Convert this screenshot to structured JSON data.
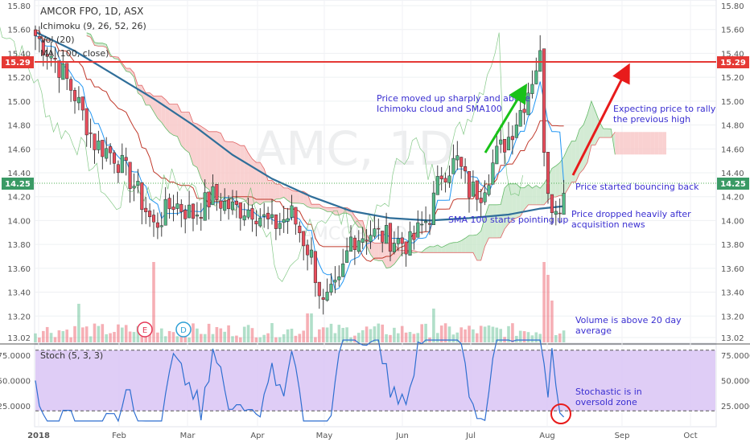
{
  "header": {
    "symbol": "AMCOR FPO, 1D, ASX",
    "indicator_1": "Ichimoku (9, 26, 52, 26)",
    "indicator_2": "Vol (20)",
    "indicator_3": "MA (100, close)"
  },
  "stoch_label": "Stoch (5, 3, 3)",
  "watermark": {
    "text": "AMC, 1D",
    "subtext": "AMCOR FPO"
  },
  "colors": {
    "up": "#53b987",
    "down": "#eb4d5c",
    "sma": "#2f6e99",
    "tenkan": "#2196f3",
    "kijun": "#c0392b",
    "span_a": "#66bb6a",
    "span_b": "#e06666",
    "cloud_bull": "#c8e6c9",
    "cloud_bear": "#f8c6c6",
    "resistance": "#e53935",
    "stoch_band": "#dcc8f5",
    "stoch_line": "#2f6fd1",
    "annotation_text": "#3a2fd1",
    "green_arrow": "#19c219",
    "red_arrow": "#e81b1b"
  },
  "chart_data": [
    {
      "type": "candlestick",
      "title": "AMCOR FPO, 1D, ASX",
      "y_ticks": [
        "15.80",
        "15.60",
        "15.40",
        "15.20",
        "15.00",
        "14.80",
        "14.60",
        "14.40",
        "14.20",
        "14.00",
        "13.80",
        "13.60",
        "13.40",
        "13.20",
        "13.02"
      ],
      "ylim": [
        13.02,
        15.85
      ],
      "x_ticks": [
        "2018",
        "Feb",
        "Mar",
        "Apr",
        "May",
        "Jun",
        "Jul",
        "Aug",
        "Sep",
        "Oct"
      ],
      "resistance_level": 15.29,
      "resistance_label": "15.29",
      "last_price_label": "14.25",
      "last_price": 14.25,
      "sma100": [
        [
          0,
          15.58
        ],
        [
          10,
          15.42
        ],
        [
          20,
          15.22
        ],
        [
          30,
          15.02
        ],
        [
          40,
          14.8
        ],
        [
          50,
          14.55
        ],
        [
          60,
          14.35
        ],
        [
          70,
          14.2
        ],
        [
          80,
          14.08
        ],
        [
          90,
          14.02
        ],
        [
          100,
          14.0
        ],
        [
          110,
          14.02
        ],
        [
          120,
          14.05
        ],
        [
          128,
          14.1
        ],
        [
          134,
          14.12
        ]
      ],
      "series": [
        {
          "name": "price",
          "x_range": [
            0,
            135
          ],
          "waypoints": [
            [
              0,
              15.55
            ],
            [
              5,
              15.35
            ],
            [
              10,
              15.05
            ],
            [
              15,
              14.65
            ],
            [
              20,
              14.55
            ],
            [
              25,
              14.3
            ],
            [
              30,
              13.95
            ],
            [
              35,
              14.15
            ],
            [
              40,
              14.05
            ],
            [
              45,
              14.2
            ],
            [
              50,
              14.1
            ],
            [
              55,
              14.1
            ],
            [
              60,
              13.95
            ],
            [
              65,
              14.05
            ],
            [
              70,
              13.7
            ],
            [
              73,
              13.28
            ],
            [
              77,
              13.45
            ],
            [
              80,
              13.85
            ],
            [
              85,
              13.9
            ],
            [
              90,
              13.85
            ],
            [
              95,
              13.8
            ],
            [
              100,
              14.05
            ],
            [
              103,
              14.4
            ],
            [
              107,
              14.5
            ],
            [
              110,
              14.25
            ],
            [
              113,
              14.25
            ],
            [
              117,
              14.55
            ],
            [
              120,
              14.7
            ],
            [
              124,
              15.0
            ],
            [
              127,
              15.3
            ],
            [
              128,
              15.36
            ],
            [
              129,
              14.65
            ],
            [
              130,
              14.3
            ],
            [
              132,
              14.05
            ],
            [
              134,
              14.25
            ]
          ]
        }
      ],
      "annotations": [
        "Price moved up sharply and above Ichimoku cloud and SMA100",
        "Expecting price to rally the previous high",
        "Price started bouncing back",
        "SMA 100 starts pointing up",
        "Price dropped heavily after acquisition news",
        "Volume is above 20 day average"
      ],
      "event_markers": [
        "E",
        "D"
      ]
    },
    {
      "type": "line",
      "title": "Stoch (5, 3, 3)",
      "y_ticks": [
        "75.0000",
        "50.0000",
        "25.0000"
      ],
      "ylim": [
        10,
        92
      ],
      "band": [
        20,
        80
      ],
      "annotation": "Stochastic is in oversold zone"
    }
  ]
}
